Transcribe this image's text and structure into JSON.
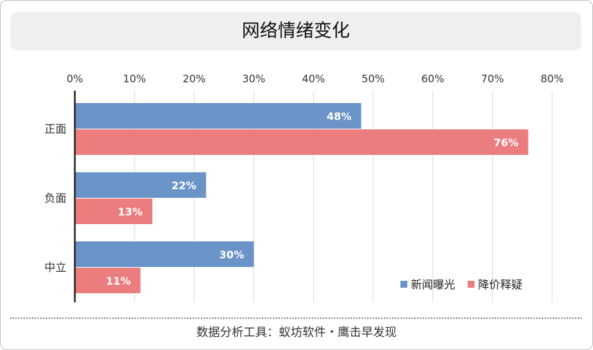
{
  "title": "网络情绪变化",
  "footer": "数据分析工具：蚁坊软件・鹰击早发现",
  "colors": {
    "news_exposure": "#6a93c8",
    "price_doubt": "#eb7d7f",
    "grid": "#d9d9d9",
    "axis": "#222222"
  },
  "chart_data": {
    "type": "bar",
    "orientation": "horizontal",
    "title": "网络情绪变化",
    "categories": [
      "正面",
      "负面",
      "中立"
    ],
    "series": [
      {
        "name": "新闻曝光",
        "values": [
          48,
          22,
          30
        ],
        "labels": [
          "48%",
          "22%",
          "30%"
        ]
      },
      {
        "name": "降价释疑",
        "values": [
          76,
          13,
          11
        ],
        "labels": [
          "76%",
          "13%",
          "11%"
        ]
      }
    ],
    "xlim": [
      0,
      80
    ],
    "xticks": [
      "0%",
      "10%",
      "20%",
      "30%",
      "40%",
      "50%",
      "60%",
      "70%",
      "80%"
    ],
    "x_axis_position": "top",
    "grid": true,
    "legend_position": "bottom-right"
  }
}
